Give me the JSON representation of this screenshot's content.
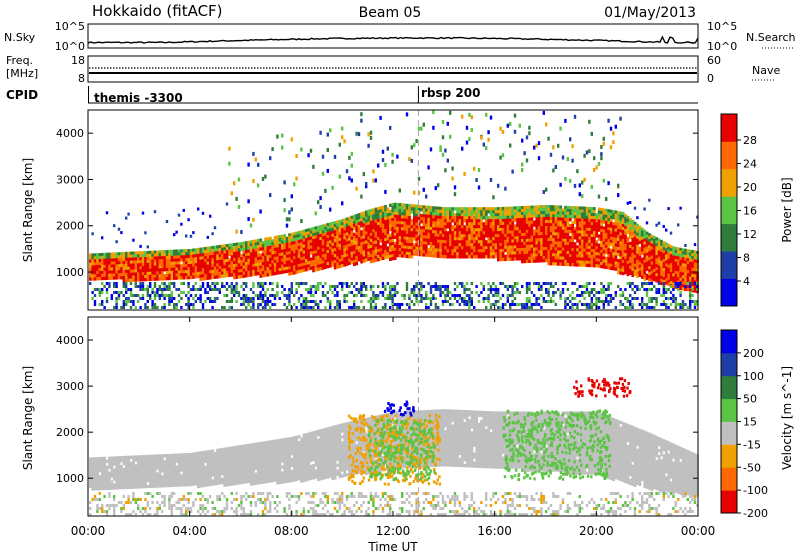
{
  "header": {
    "station": "Hokkaido (fitACF)",
    "beam": "Beam 05",
    "date": "01/May/2013"
  },
  "noise_panel": {
    "left_label": "N.Sky",
    "right_label": "N.Search",
    "left_ticks": [
      "10^5",
      "10^0"
    ],
    "right_ticks": [
      "10^5",
      "10^0"
    ]
  },
  "freq_panel": {
    "left_label": "Freq.",
    "left_unit": "[MHz]",
    "right_label": "Nave",
    "left_ticks": [
      "18",
      "8"
    ],
    "right_ticks": [
      "60",
      "0"
    ]
  },
  "cpid_panel": {
    "label": "CPID",
    "segments": [
      {
        "text": "themis -3300",
        "start_hour": 0
      },
      {
        "text": "rbsp 200",
        "start_hour": 13
      }
    ]
  },
  "chart_data": [
    {
      "type": "heatmap",
      "quantity": "Power",
      "ylabel": "Slant Range [km]",
      "xlabel": "",
      "ylim": [
        180,
        4500
      ],
      "yticks": [
        1000,
        2000,
        3000,
        4000
      ],
      "colorbar": {
        "label": "Power [dB]",
        "tick_labels": [
          "28",
          "24",
          "20",
          "16",
          "12",
          "8",
          "4"
        ],
        "colors": [
          "#0000e6",
          "#1f3fa8",
          "#2f7d3a",
          "#5cc445",
          "#f0a000",
          "#ff6a00",
          "#e60000"
        ],
        "levels": [
          0,
          4,
          8,
          12,
          16,
          20,
          24,
          30
        ]
      },
      "bands": [
        {
          "hours": [
            0,
            2,
            4,
            6,
            7,
            8,
            9,
            10,
            11,
            12,
            13,
            14,
            16,
            18,
            20,
            21,
            22,
            23,
            24
          ],
          "lower_km": [
            850,
            850,
            870,
            920,
            950,
            1000,
            1080,
            1150,
            1250,
            1320,
            1380,
            1350,
            1300,
            1220,
            1120,
            1000,
            850,
            700,
            600
          ],
          "upper_km": [
            1400,
            1450,
            1500,
            1650,
            1750,
            1850,
            2000,
            2150,
            2350,
            2500,
            2450,
            2400,
            2400,
            2450,
            2400,
            2300,
            1850,
            1550,
            1450
          ],
          "power_db": 24
        }
      ]
    },
    {
      "type": "heatmap",
      "quantity": "Velocity",
      "ylabel": "Slant Range [km]",
      "xlabel": "Time UT",
      "xticks": [
        "00:00",
        "04:00",
        "08:00",
        "12:00",
        "16:00",
        "20:00",
        "00:00"
      ],
      "ylim": [
        180,
        4500
      ],
      "yticks": [
        1000,
        2000,
        3000,
        4000
      ],
      "colorbar": {
        "label": "Velocity [m s^-1]",
        "tick_labels": [
          "200",
          "100",
          "50",
          "15",
          "-15",
          "-50",
          "-100",
          "-200"
        ],
        "colors": [
          "#e60000",
          "#ff6a00",
          "#f0a000",
          "#c0c0c0",
          "#5cc445",
          "#2f7d3a",
          "#1f3fa8",
          "#0000e6"
        ]
      },
      "ground_scatter_band": {
        "hours": [
          0,
          4,
          8,
          10,
          12,
          14,
          16,
          20,
          22,
          24
        ],
        "lower_km": [
          800,
          850,
          950,
          1050,
          1250,
          1300,
          1250,
          1100,
          800,
          600
        ],
        "upper_km": [
          1450,
          1550,
          1900,
          2200,
          2450,
          2500,
          2450,
          2450,
          2000,
          1500
        ]
      },
      "features": [
        {
          "name": "negative velocity cluster",
          "hours": [
            10.2,
            13.8
          ],
          "km": [
            900,
            2400
          ],
          "velocity": -50
        },
        {
          "name": "positive velocity cluster",
          "hours": [
            11,
            13.6
          ],
          "km": [
            1000,
            2300
          ],
          "velocity": 50
        },
        {
          "name": "strong positive velocity patch",
          "hours": [
            11.6,
            12.8
          ],
          "km": [
            2400,
            2700
          ],
          "velocity": 200
        },
        {
          "name": "positive velocity cluster",
          "hours": [
            16.3,
            20.5
          ],
          "km": [
            1000,
            2500
          ],
          "velocity": 50
        },
        {
          "name": "strong negative velocity patch",
          "hours": [
            19,
            21.3
          ],
          "km": [
            2800,
            3200
          ],
          "velocity": -200
        }
      ]
    }
  ],
  "xaxis": {
    "ticks": [
      "00:00",
      "04:00",
      "08:00",
      "12:00",
      "16:00",
      "20:00",
      "00:00"
    ],
    "title": "Time UT"
  }
}
